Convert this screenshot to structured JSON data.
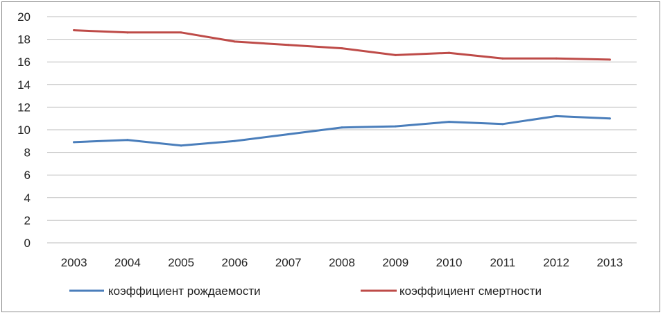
{
  "chart_data": {
    "type": "line",
    "categories": [
      "2003",
      "2004",
      "2005",
      "2006",
      "2007",
      "2008",
      "2009",
      "2010",
      "2011",
      "2012",
      "2013"
    ],
    "series": [
      {
        "name": "коэффициент рождаемости",
        "color": "#4a7ebb",
        "values": [
          8.9,
          9.1,
          8.6,
          9.0,
          9.6,
          10.2,
          10.3,
          10.7,
          10.5,
          11.2,
          11.0
        ]
      },
      {
        "name": "коэффициент смертности",
        "color": "#be4b48",
        "values": [
          18.8,
          18.6,
          18.6,
          17.8,
          17.5,
          17.2,
          16.6,
          16.8,
          16.3,
          16.3,
          16.2
        ]
      }
    ],
    "ylim": [
      0,
      20
    ],
    "yticks": [
      "0",
      "2",
      "4",
      "6",
      "8",
      "10",
      "12",
      "14",
      "16",
      "18",
      "20"
    ],
    "grid": true,
    "legend_position": "bottom"
  }
}
